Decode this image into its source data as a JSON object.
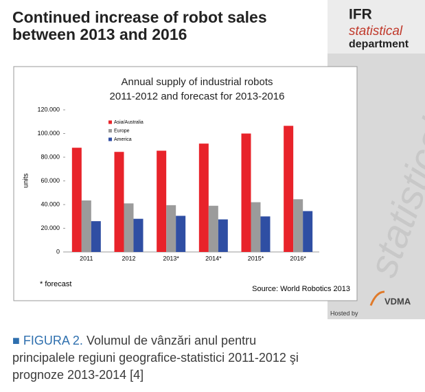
{
  "header": {
    "title_lines": [
      "Continued increase of robot sales",
      "between 2013 and 2016"
    ]
  },
  "logo": {
    "ifr": "IFR",
    "statistical": "statistical",
    "department": "department",
    "watermark": "statistical",
    "hosted_by": "Hosted by",
    "vdma": "VDMA"
  },
  "chart_data": {
    "type": "bar",
    "title": "Annual supply of industrial robots",
    "subtitle": "2011-2012 and forecast for 2013-2016",
    "ylabel": "units",
    "categories": [
      "2011",
      "2012",
      "2013*",
      "2014*",
      "2015*",
      "2016*"
    ],
    "series": [
      {
        "name": "Asia/Australia",
        "color": "#e8232a",
        "values": [
          88000,
          84500,
          85500,
          91500,
          100000,
          106500
        ]
      },
      {
        "name": "Europe",
        "color": "#9b9b9b",
        "values": [
          43500,
          41000,
          39500,
          39000,
          42000,
          44500
        ]
      },
      {
        "name": "America",
        "color": "#2f4ea3",
        "values": [
          26000,
          28000,
          30500,
          27500,
          30000,
          34500
        ]
      }
    ],
    "ylim": [
      0,
      120000
    ],
    "yticks": [
      0,
      {
        "value": 20000,
        "label": "20.000"
      },
      {
        "value": 40000,
        "label": "40.000"
      },
      {
        "value": 60000,
        "label": "60.000"
      },
      {
        "value": 80000,
        "label": "80.000"
      },
      {
        "value": 100000,
        "label": "100.000"
      },
      {
        "value": 120000,
        "label": "120.000"
      }
    ],
    "grid": false,
    "legend": "top-left",
    "annotations": [
      "* forecast",
      "Source: World Robotics 2013"
    ]
  },
  "caption": {
    "marker": "■",
    "label": "FIGURA 2.",
    "lines": [
      "Volumul de vânzări anul pentru",
      "principalele regiuni geografice-statistici 2011-2012 şi",
      "prognoze 2013-2014 [4]"
    ]
  }
}
